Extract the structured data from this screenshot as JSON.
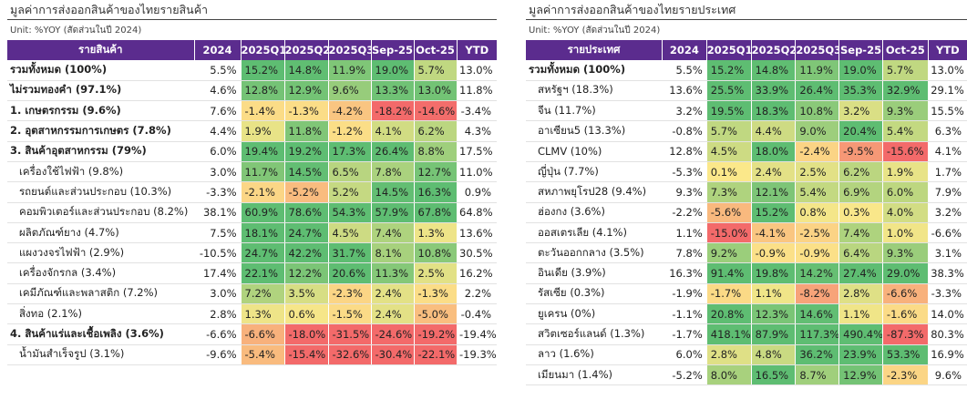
{
  "left": {
    "title": "มูลค่าการส่งออกสินค้าของไทยรายสินค้า",
    "unit": "Unit: %YOY (สัดส่วนในปี 2024)",
    "headers": [
      "รายสินค้า",
      "2024",
      "2025Q1",
      "2025Q2",
      "2025Q3",
      "Sep-25",
      "Oct-25",
      "YTD"
    ],
    "rows": [
      {
        "label": "รวมทั้งหมด (100%)",
        "bold": true,
        "indent": false,
        "y2024": "5.5%",
        "q1": "15.2%",
        "q2": "14.8%",
        "q3": "11.9%",
        "sep": "19.0%",
        "oct": "5.7%",
        "ytd": "13.0%"
      },
      {
        "label": "ไม่รวมทองคำ (97.1%)",
        "bold": true,
        "indent": false,
        "y2024": "4.6%",
        "q1": "12.8%",
        "q2": "12.9%",
        "q3": "9.6%",
        "sep": "13.3%",
        "oct": "13.0%",
        "ytd": "11.8%"
      },
      {
        "label": "1. เกษตรกรรม (9.6%)",
        "bold": true,
        "indent": false,
        "y2024": "7.6%",
        "q1": "-1.4%",
        "q2": "-1.3%",
        "q3": "-4.2%",
        "sep": "-18.2%",
        "oct": "-14.6%",
        "ytd": "-3.4%"
      },
      {
        "label": "2. อุตสาหกรรมการเกษตร (7.8%)",
        "bold": true,
        "indent": false,
        "y2024": "4.4%",
        "q1": "1.9%",
        "q2": "11.8%",
        "q3": "-1.2%",
        "sep": "4.1%",
        "oct": "6.2%",
        "ytd": "4.3%"
      },
      {
        "label": "3. สินค้าอุตสาหกรรม (79%)",
        "bold": true,
        "indent": false,
        "y2024": "6.0%",
        "q1": "19.4%",
        "q2": "19.2%",
        "q3": "17.3%",
        "sep": "26.4%",
        "oct": "8.8%",
        "ytd": "17.5%"
      },
      {
        "label": "เครื่องใช้ไฟฟ้า (9.8%)",
        "bold": false,
        "indent": true,
        "y2024": "3.0%",
        "q1": "11.7%",
        "q2": "14.5%",
        "q3": "6.5%",
        "sep": "7.8%",
        "oct": "12.7%",
        "ytd": "11.0%"
      },
      {
        "label": "รถยนต์และส่วนประกอบ (10.3%)",
        "bold": false,
        "indent": true,
        "y2024": "-3.3%",
        "q1": "-2.1%",
        "q2": "-5.2%",
        "q3": "5.2%",
        "sep": "14.5%",
        "oct": "16.3%",
        "ytd": "0.9%"
      },
      {
        "label": "คอมพิวเตอร์และส่วนประกอบ (8.2%)",
        "bold": false,
        "indent": true,
        "y2024": "38.1%",
        "q1": "60.9%",
        "q2": "78.6%",
        "q3": "54.3%",
        "sep": "57.9%",
        "oct": "67.8%",
        "ytd": "64.8%"
      },
      {
        "label": "ผลิตภัณฑ์ยาง (4.7%)",
        "bold": false,
        "indent": true,
        "y2024": "7.5%",
        "q1": "18.1%",
        "q2": "24.7%",
        "q3": "4.5%",
        "sep": "7.4%",
        "oct": "1.3%",
        "ytd": "13.6%"
      },
      {
        "label": "แผงวงจรไฟฟ้า (2.9%)",
        "bold": false,
        "indent": true,
        "y2024": "-10.5%",
        "q1": "24.7%",
        "q2": "42.2%",
        "q3": "31.7%",
        "sep": "8.1%",
        "oct": "10.8%",
        "ytd": "30.5%"
      },
      {
        "label": "เครื่องจักรกล (3.4%)",
        "bold": false,
        "indent": true,
        "y2024": "17.4%",
        "q1": "22.1%",
        "q2": "12.2%",
        "q3": "20.6%",
        "sep": "11.3%",
        "oct": "2.5%",
        "ytd": "16.2%"
      },
      {
        "label": "เคมีภัณฑ์และพลาสติก (7.2%)",
        "bold": false,
        "indent": true,
        "y2024": "3.0%",
        "q1": "7.2%",
        "q2": "3.5%",
        "q3": "-2.3%",
        "sep": "2.4%",
        "oct": "-1.3%",
        "ytd": "2.2%"
      },
      {
        "label": "สิ่งทอ (2.1%)",
        "bold": false,
        "indent": true,
        "y2024": "2.8%",
        "q1": "1.3%",
        "q2": "0.6%",
        "q3": "-1.5%",
        "sep": "2.4%",
        "oct": "-5.0%",
        "ytd": "-0.4%"
      },
      {
        "label": "4. สินค้าแร่และเชื้อเพลิง (3.6%)",
        "bold": true,
        "indent": false,
        "y2024": "-6.6%",
        "q1": "-6.6%",
        "q2": "-18.0%",
        "q3": "-31.5%",
        "sep": "-24.6%",
        "oct": "-19.2%",
        "ytd": "-19.4%"
      },
      {
        "label": "น้ำมันสำเร็จรูป (3.1%)",
        "bold": false,
        "indent": true,
        "y2024": "-9.6%",
        "q1": "-5.4%",
        "q2": "-15.4%",
        "q3": "-32.6%",
        "sep": "-30.4%",
        "oct": "-22.1%",
        "ytd": "-19.3%"
      }
    ]
  },
  "right": {
    "title": "มูลค่าการส่งออกสินค้าของไทยรายประเทศ",
    "unit": "Unit: %YOY (สัดส่วนในปี 2024)",
    "headers": [
      "รายประเทศ",
      "2024",
      "2025Q1",
      "2025Q2",
      "2025Q3",
      "Sep-25",
      "Oct-25",
      "YTD"
    ],
    "rows": [
      {
        "label": "รวมทั้งหมด (100%)",
        "bold": true,
        "indent": false,
        "y2024": "5.5%",
        "q1": "15.2%",
        "q2": "14.8%",
        "q3": "11.9%",
        "sep": "19.0%",
        "oct": "5.7%",
        "ytd": "13.0%"
      },
      {
        "label": "สหรัฐฯ (18.3%)",
        "bold": false,
        "indent": true,
        "y2024": "13.6%",
        "q1": "25.5%",
        "q2": "33.9%",
        "q3": "26.4%",
        "sep": "35.3%",
        "oct": "32.9%",
        "ytd": "29.1%"
      },
      {
        "label": "จีน (11.7%)",
        "bold": false,
        "indent": true,
        "y2024": "3.2%",
        "q1": "19.5%",
        "q2": "18.3%",
        "q3": "10.8%",
        "sep": "3.2%",
        "oct": "9.3%",
        "ytd": "15.5%"
      },
      {
        "label": "อาเซียน5 (13.3%)",
        "bold": false,
        "indent": true,
        "y2024": "-0.8%",
        "q1": "5.7%",
        "q2": "4.4%",
        "q3": "9.0%",
        "sep": "20.4%",
        "oct": "5.4%",
        "ytd": "6.3%"
      },
      {
        "label": "CLMV (10%)",
        "bold": false,
        "indent": true,
        "y2024": "12.8%",
        "q1": "4.5%",
        "q2": "18.0%",
        "q3": "-2.4%",
        "sep": "-9.5%",
        "oct": "-15.6%",
        "ytd": "4.1%"
      },
      {
        "label": "ญี่ปุ่น (7.7%)",
        "bold": false,
        "indent": true,
        "y2024": "-5.3%",
        "q1": "0.1%",
        "q2": "2.4%",
        "q3": "2.5%",
        "sep": "6.2%",
        "oct": "1.9%",
        "ytd": "1.7%"
      },
      {
        "label": "สหภาพยุโรป28 (9.4%)",
        "bold": false,
        "indent": true,
        "y2024": "9.3%",
        "q1": "7.3%",
        "q2": "12.1%",
        "q3": "5.4%",
        "sep": "6.9%",
        "oct": "6.0%",
        "ytd": "7.9%"
      },
      {
        "label": "ฮ่องกง (3.6%)",
        "bold": false,
        "indent": true,
        "y2024": "-2.2%",
        "q1": "-5.6%",
        "q2": "15.2%",
        "q3": "0.8%",
        "sep": "0.3%",
        "oct": "4.0%",
        "ytd": "3.2%"
      },
      {
        "label": "ออสเตรเลีย (4.1%)",
        "bold": false,
        "indent": true,
        "y2024": "1.1%",
        "q1": "-15.0%",
        "q2": "-4.1%",
        "q3": "-2.5%",
        "sep": "7.4%",
        "oct": "1.0%",
        "ytd": "-6.6%"
      },
      {
        "label": "ตะวันออกกลาง (3.5%)",
        "bold": false,
        "indent": true,
        "y2024": "7.8%",
        "q1": "9.2%",
        "q2": "-0.9%",
        "q3": "-0.9%",
        "sep": "6.4%",
        "oct": "9.3%",
        "ytd": "3.1%"
      },
      {
        "label": "อินเดีย (3.9%)",
        "bold": false,
        "indent": true,
        "y2024": "16.3%",
        "q1": "91.4%",
        "q2": "19.8%",
        "q3": "14.2%",
        "sep": "27.4%",
        "oct": "29.0%",
        "ytd": "38.3%"
      },
      {
        "label": "รัสเซีย (0.3%)",
        "bold": false,
        "indent": true,
        "y2024": "-1.9%",
        "q1": "-1.7%",
        "q2": "1.1%",
        "q3": "-8.2%",
        "sep": "2.8%",
        "oct": "-6.6%",
        "ytd": "-3.3%"
      },
      {
        "label": "ยูเครน (0%)",
        "bold": false,
        "indent": true,
        "y2024": "-1.1%",
        "q1": "20.8%",
        "q2": "12.3%",
        "q3": "14.6%",
        "sep": "1.1%",
        "oct": "-1.6%",
        "ytd": "14.0%"
      },
      {
        "label": "สวิตเซอร์แลนด์ (1.3%)",
        "bold": false,
        "indent": true,
        "y2024": "-1.7%",
        "q1": "418.1%",
        "q2": "87.9%",
        "q3": "117.3%",
        "sep": "490.4%",
        "oct": "-87.3%",
        "ytd": "80.3%"
      },
      {
        "label": "ลาว (1.6%)",
        "bold": false,
        "indent": true,
        "y2024": "6.0%",
        "q1": "2.8%",
        "q2": "4.8%",
        "q3": "36.2%",
        "sep": "23.9%",
        "oct": "53.3%",
        "ytd": "16.9%"
      },
      {
        "label": "เมียนมา (1.4%)",
        "bold": false,
        "indent": true,
        "y2024": "-5.2%",
        "q1": "8.0%",
        "q2": "16.5%",
        "q3": "8.7%",
        "sep": "12.9%",
        "oct": "-2.3%",
        "ytd": "9.6%"
      }
    ]
  },
  "colors": {
    "header_bg": "#5b2c8e",
    "strong_negative": "#f36a6a",
    "neutral": "#fce88a",
    "strong_positive": "#5ebd72"
  }
}
